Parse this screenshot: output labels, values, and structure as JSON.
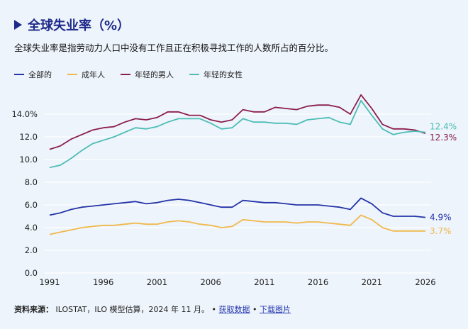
{
  "title": "全球失业率（%）",
  "subtitle": "全球失业率是指劳动力人口中没有工作且正在积极寻找工作的人数所占的百分比。",
  "source": {
    "label": "资料来源：",
    "text": "ILOSTAT，ILO 模型估算，2024 年 11 月。",
    "sep": "•",
    "link_data": "获取数据",
    "link_image": "下载图片"
  },
  "chart_data": {
    "type": "line",
    "title": "全球失业率（%）",
    "xlabel": "",
    "ylabel": "",
    "ylim": [
      0,
      16
    ],
    "xlim": [
      1991,
      2026
    ],
    "grid": true,
    "legend_position": "top-left",
    "y_ticks": [
      "0.0",
      "2.0",
      "4.0",
      "6.0",
      "8.0",
      "10.0",
      "12.0",
      "14.0%"
    ],
    "x_ticks": [
      "1991",
      "1996",
      "2001",
      "2006",
      "2011",
      "2016",
      "2021",
      "2026"
    ],
    "x": [
      1991,
      1992,
      1993,
      1994,
      1995,
      1996,
      1997,
      1998,
      1999,
      2000,
      2001,
      2002,
      2003,
      2004,
      2005,
      2006,
      2007,
      2008,
      2009,
      2010,
      2011,
      2012,
      2013,
      2014,
      2015,
      2016,
      2017,
      2018,
      2019,
      2020,
      2021,
      2022,
      2023,
      2024,
      2025,
      2026
    ],
    "series": [
      {
        "name": "全部的",
        "color": "#2433a8",
        "end_label": "4.9%",
        "values": [
          5.1,
          5.3,
          5.6,
          5.8,
          5.9,
          6.0,
          6.1,
          6.2,
          6.3,
          6.1,
          6.2,
          6.4,
          6.5,
          6.4,
          6.2,
          6.0,
          5.8,
          5.8,
          6.4,
          6.3,
          6.2,
          6.2,
          6.1,
          6.0,
          6.0,
          6.0,
          5.9,
          5.8,
          5.6,
          6.6,
          6.1,
          5.3,
          5.0,
          5.0,
          5.0,
          4.9
        ]
      },
      {
        "name": "成年人",
        "color": "#f0b84a",
        "end_label": "3.7%",
        "values": [
          3.4,
          3.6,
          3.8,
          4.0,
          4.1,
          4.2,
          4.2,
          4.3,
          4.4,
          4.3,
          4.3,
          4.5,
          4.6,
          4.5,
          4.3,
          4.2,
          4.0,
          4.1,
          4.7,
          4.6,
          4.5,
          4.5,
          4.5,
          4.4,
          4.5,
          4.5,
          4.4,
          4.3,
          4.2,
          5.1,
          4.7,
          4.0,
          3.7,
          3.7,
          3.7,
          3.7
        ]
      },
      {
        "name": "年轻的男人",
        "color": "#8b1d4f",
        "end_label": "12.3%",
        "values": [
          10.9,
          11.2,
          11.8,
          12.2,
          12.6,
          12.8,
          12.9,
          13.3,
          13.6,
          13.5,
          13.7,
          14.2,
          14.2,
          13.9,
          13.9,
          13.5,
          13.3,
          13.5,
          14.4,
          14.2,
          14.2,
          14.6,
          14.5,
          14.4,
          14.7,
          14.8,
          14.8,
          14.6,
          14.0,
          15.7,
          14.5,
          13.1,
          12.7,
          12.7,
          12.6,
          12.3
        ]
      },
      {
        "name": "年轻的女性",
        "color": "#4dbdb5",
        "end_label": "12.4%",
        "values": [
          9.3,
          9.5,
          10.1,
          10.8,
          11.4,
          11.7,
          12.0,
          12.4,
          12.8,
          12.7,
          12.9,
          13.3,
          13.6,
          13.6,
          13.6,
          13.2,
          12.7,
          12.8,
          13.6,
          13.3,
          13.3,
          13.2,
          13.2,
          13.1,
          13.5,
          13.6,
          13.7,
          13.3,
          13.1,
          15.2,
          13.9,
          12.7,
          12.2,
          12.4,
          12.5,
          12.4
        ]
      }
    ]
  }
}
